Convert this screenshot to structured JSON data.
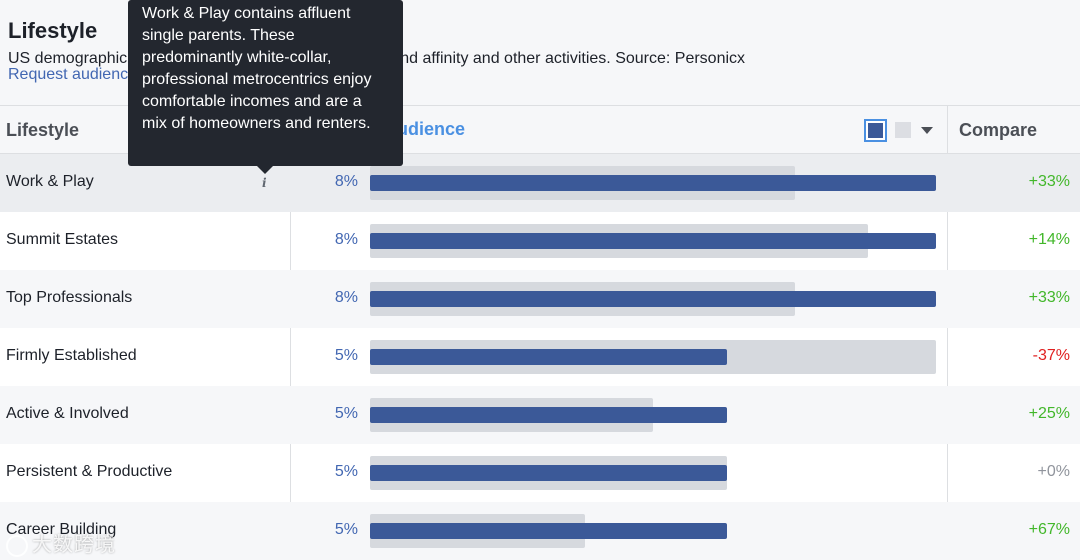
{
  "header": {
    "title": "Lifestyle",
    "description": "US demographic data based on purchase behavior, brand affinity and other activities. Source: Personicx",
    "request_link": "Request audience"
  },
  "columns": {
    "lifestyle": "Lifestyle",
    "audience": "Audience",
    "compare": "Compare"
  },
  "legend": {
    "selected_color": "#3b5998",
    "baseline_color": "#dcdee3",
    "accent_border": "#4a90e2"
  },
  "tooltip": {
    "text": "Work & Play contains affluent single parents. These predominantly white-collar, professional metrocentrics enjoy comfortable incomes and are a mix of homeowners and renters."
  },
  "rows": [
    {
      "name": "Work & Play",
      "percent": "8%",
      "audience_share": 1.0,
      "baseline_share": 0.75,
      "compare": "+33%",
      "compare_color": "#42b72a"
    },
    {
      "name": "Summit Estates",
      "percent": "8%",
      "audience_share": 1.0,
      "baseline_share": 0.88,
      "compare": "+14%",
      "compare_color": "#42b72a"
    },
    {
      "name": "Top Professionals",
      "percent": "8%",
      "audience_share": 1.0,
      "baseline_share": 0.75,
      "compare": "+33%",
      "compare_color": "#42b72a"
    },
    {
      "name": "Firmly Established",
      "percent": "5%",
      "audience_share": 0.63,
      "baseline_share": 1.0,
      "compare": "-37%",
      "compare_color": "#e02020"
    },
    {
      "name": "Active & Involved",
      "percent": "5%",
      "audience_share": 0.63,
      "baseline_share": 0.5,
      "compare": "+25%",
      "compare_color": "#42b72a"
    },
    {
      "name": "Persistent & Productive",
      "percent": "5%",
      "audience_share": 0.63,
      "baseline_share": 0.63,
      "compare": "+0%",
      "compare_color": "#90949c"
    },
    {
      "name": "Career Building",
      "percent": "5%",
      "audience_share": 0.63,
      "baseline_share": 0.38,
      "compare": "+67%",
      "compare_color": "#42b72a"
    }
  ],
  "info_icon": "i",
  "watermark": "大数跨境"
}
